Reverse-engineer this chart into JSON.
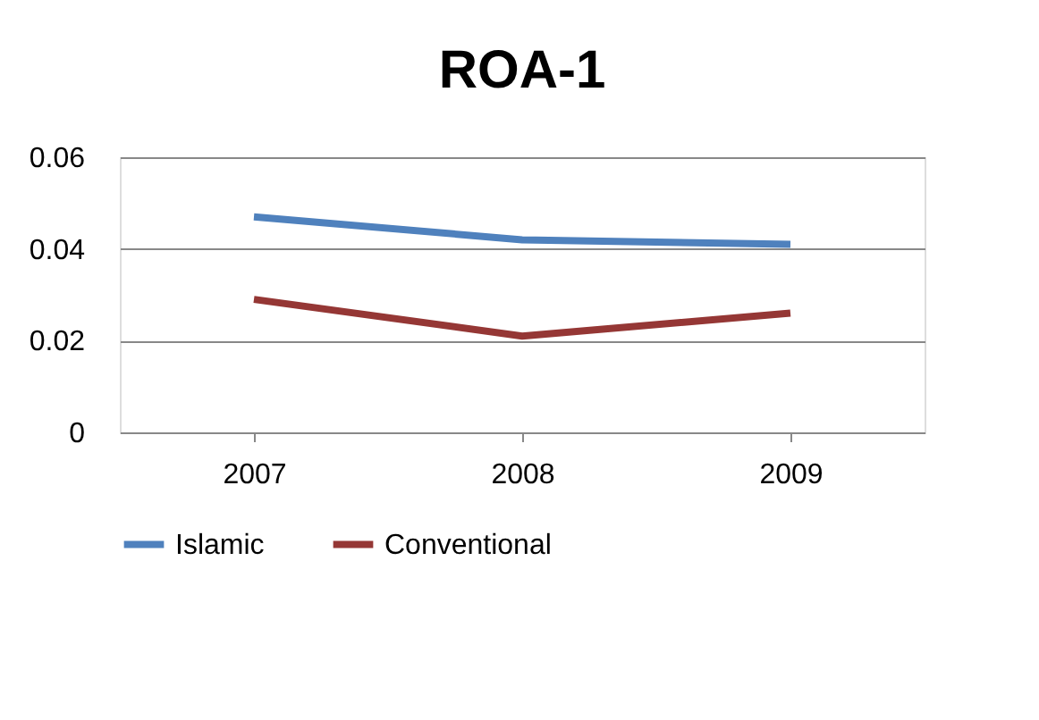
{
  "chart_data": {
    "type": "line",
    "title": "ROA-1",
    "categories": [
      "2007",
      "2008",
      "2009"
    ],
    "series": [
      {
        "name": "Islamic",
        "color": "#4f81bd",
        "values": [
          0.047,
          0.042,
          0.041
        ]
      },
      {
        "name": "Conventional",
        "color": "#953735",
        "values": [
          0.029,
          0.021,
          0.026
        ]
      }
    ],
    "ylim": [
      0,
      0.06
    ],
    "yticks": [
      {
        "value": 0,
        "label": "0"
      },
      {
        "value": 0.02,
        "label": "0.02"
      },
      {
        "value": 0.04,
        "label": "0.04"
      },
      {
        "value": 0.06,
        "label": "0.06"
      }
    ],
    "grid": "y",
    "legend": "bottom",
    "marker": "none",
    "line_style": "solid"
  }
}
